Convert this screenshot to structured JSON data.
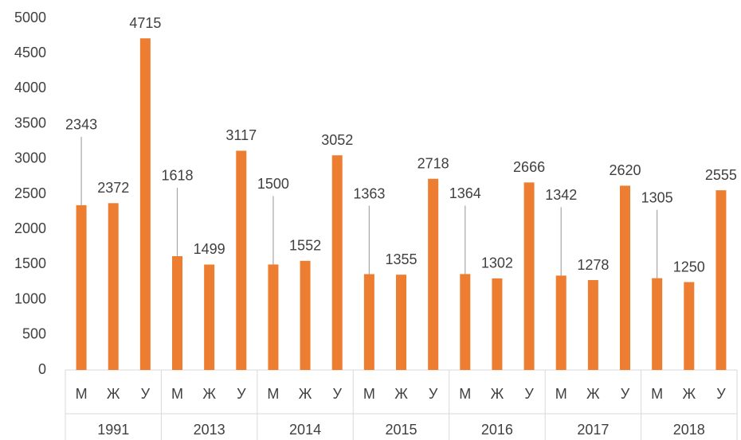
{
  "chart_data": {
    "type": "bar",
    "categories": [
      "М",
      "Ж",
      "У",
      "М",
      "Ж",
      "У",
      "М",
      "Ж",
      "У",
      "М",
      "Ж",
      "У",
      "М",
      "Ж",
      "У",
      "М",
      "Ж",
      "У",
      "М",
      "Ж",
      "У"
    ],
    "groups": [
      "1991",
      "2013",
      "2014",
      "2015",
      "2016",
      "2017",
      "2018"
    ],
    "values": [
      2343,
      2372,
      4715,
      1618,
      1499,
      3117,
      1500,
      1552,
      3052,
      1363,
      1355,
      2718,
      1364,
      1302,
      2666,
      1342,
      1278,
      2620,
      1305,
      1250,
      2555
    ],
    "color": "#ED7D31",
    "ylim": [
      0,
      5000
    ],
    "yticks": [
      0,
      500,
      1000,
      1500,
      2000,
      2500,
      3000,
      3500,
      4000,
      4500,
      5000
    ]
  }
}
